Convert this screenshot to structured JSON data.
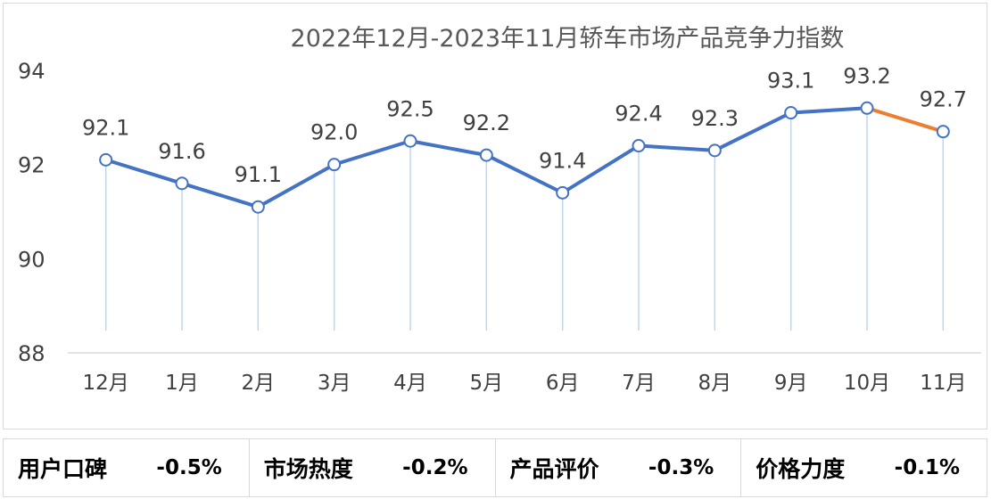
{
  "chart_data": {
    "type": "line",
    "title": "2022年12月-2023年11月轿车市场产品竞争力指数",
    "categories": [
      "12月",
      "1月",
      "2月",
      "3月",
      "4月",
      "5月",
      "6月",
      "7月",
      "8月",
      "9月",
      "10月",
      "11月"
    ],
    "values": [
      92.1,
      91.6,
      91.1,
      92.0,
      92.5,
      92.2,
      91.4,
      92.4,
      92.3,
      93.1,
      93.2,
      92.7
    ],
    "data_labels": [
      "92.1",
      "91.6",
      "91.1",
      "92.0",
      "92.5",
      "92.2",
      "91.4",
      "92.4",
      "92.3",
      "93.1",
      "93.2",
      "92.7"
    ],
    "ylim": [
      88,
      94
    ],
    "yticks": [
      88,
      90,
      92,
      94
    ],
    "grid": false,
    "colors": {
      "line": "#4472C4",
      "last_segment": "#ED7D31",
      "drop_line": "#BDD7EE",
      "axis": "#D9D9D9",
      "text": "#404040"
    }
  },
  "metrics": [
    {
      "name": "用户口碑",
      "value": "-0.5%"
    },
    {
      "name": "市场热度",
      "value": "-0.2%"
    },
    {
      "name": "产品评价",
      "value": "-0.3%"
    },
    {
      "name": "价格力度",
      "value": "-0.1%"
    }
  ]
}
